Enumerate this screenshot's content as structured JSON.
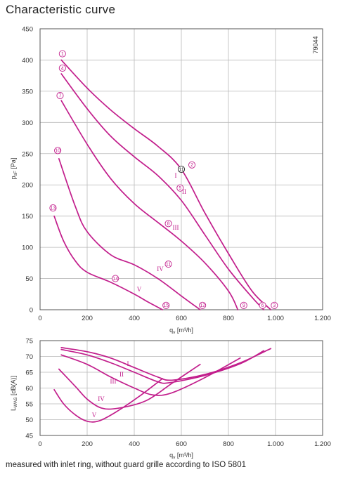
{
  "header": {
    "title": "Characteristic curve"
  },
  "footer": {
    "note": "measured with inlet ring, without guard grille according to ISO 5801"
  },
  "figure_code": "79044",
  "colors": {
    "curve": "#c21e8c",
    "grid": "#b9b9b9",
    "frame": "#555555"
  },
  "chart_data": [
    {
      "type": "line",
      "xlabel": "q_v [m³/h]",
      "ylabel": "p_sF [Pa]",
      "xlim": [
        0,
        1200
      ],
      "ylim": [
        0,
        450
      ],
      "xticks": [
        "0",
        "200",
        "400",
        "600",
        "800",
        "1.000",
        "1.200"
      ],
      "yticks": [
        "0",
        "50",
        "100",
        "150",
        "200",
        "250",
        "300",
        "350",
        "400",
        "450"
      ],
      "grid": true,
      "series": [
        {
          "name": "I",
          "points": [
            [
              90,
              400
            ],
            [
              200,
              355
            ],
            [
              300,
              320
            ],
            [
              400,
              290
            ],
            [
              500,
              262
            ],
            [
              600,
              225
            ],
            [
              700,
              155
            ],
            [
              800,
              90
            ],
            [
              900,
              30
            ],
            [
              980,
              0
            ]
          ]
        },
        {
          "name": "II",
          "points": [
            [
              90,
              378
            ],
            [
              200,
              322
            ],
            [
              300,
              278
            ],
            [
              400,
              245
            ],
            [
              500,
              215
            ],
            [
              600,
              175
            ],
            [
              700,
              120
            ],
            [
              800,
              65
            ],
            [
              900,
              20
            ],
            [
              950,
              0
            ]
          ]
        },
        {
          "name": "III",
          "points": [
            [
              90,
              335
            ],
            [
              200,
              265
            ],
            [
              300,
              210
            ],
            [
              400,
              170
            ],
            [
              500,
              140
            ],
            [
              600,
              110
            ],
            [
              700,
              75
            ],
            [
              800,
              30
            ],
            [
              840,
              0
            ]
          ]
        },
        {
          "name": "IV",
          "points": [
            [
              80,
              242
            ],
            [
              150,
              165
            ],
            [
              200,
              125
            ],
            [
              300,
              88
            ],
            [
              400,
              72
            ],
            [
              500,
              50
            ],
            [
              600,
              22
            ],
            [
              680,
              0
            ]
          ]
        },
        {
          "name": "V",
          "points": [
            [
              60,
              150
            ],
            [
              100,
              110
            ],
            [
              150,
              78
            ],
            [
              200,
              60
            ],
            [
              300,
              44
            ],
            [
              400,
              25
            ],
            [
              460,
              12
            ],
            [
              520,
              0
            ]
          ]
        }
      ],
      "roman_labels": [
        "I",
        "II",
        "III",
        "IV",
        "V"
      ],
      "markers": [
        {
          "id": "1",
          "x": 95,
          "y": 410
        },
        {
          "id": "4",
          "x": 95,
          "y": 387
        },
        {
          "id": "7",
          "x": 85,
          "y": 343
        },
        {
          "id": "10",
          "x": 75,
          "y": 255
        },
        {
          "id": "13",
          "x": 55,
          "y": 163
        },
        {
          "id": "2",
          "x": 645,
          "y": 232
        },
        {
          "id": "11",
          "x": 600,
          "y": 225
        },
        {
          "id": "5",
          "x": 595,
          "y": 195
        },
        {
          "id": "8",
          "x": 545,
          "y": 138
        },
        {
          "id": "11",
          "x": 545,
          "y": 73
        },
        {
          "id": "14",
          "x": 320,
          "y": 50
        },
        {
          "id": "15",
          "x": 535,
          "y": 7
        },
        {
          "id": "12",
          "x": 690,
          "y": 7
        },
        {
          "id": "9",
          "x": 865,
          "y": 7
        },
        {
          "id": "6",
          "x": 945,
          "y": 7
        },
        {
          "id": "3",
          "x": 995,
          "y": 7
        }
      ]
    },
    {
      "type": "line",
      "xlabel": "q_v [m³/h]",
      "ylabel": "L_WAS [dB(A)]",
      "xlim": [
        0,
        1200
      ],
      "ylim": [
        45,
        75
      ],
      "xticks": [
        "0",
        "200",
        "400",
        "600",
        "800",
        "1.000",
        "1.200"
      ],
      "yticks": [
        "45",
        "50",
        "55",
        "60",
        "65",
        "70",
        "75"
      ],
      "grid": true,
      "series": [
        {
          "name": "I",
          "points": [
            [
              90,
              72.8
            ],
            [
              200,
              71.5
            ],
            [
              300,
              69.5
            ],
            [
              400,
              66.5
            ],
            [
              500,
              63.5
            ],
            [
              560,
              62.5
            ],
            [
              700,
              64.3
            ],
            [
              850,
              68
            ],
            [
              980,
              72.5
            ]
          ]
        },
        {
          "name": "II",
          "points": [
            [
              90,
              72.2
            ],
            [
              200,
              70.5
            ],
            [
              300,
              68
            ],
            [
              400,
              65
            ],
            [
              500,
              62
            ],
            [
              550,
              61.7
            ],
            [
              700,
              64
            ],
            [
              850,
              67.7
            ],
            [
              950,
              71.8
            ]
          ]
        },
        {
          "name": "III",
          "points": [
            [
              90,
              70.5
            ],
            [
              200,
              67.5
            ],
            [
              300,
              63.5
            ],
            [
              400,
              60
            ],
            [
              480,
              57.8
            ],
            [
              560,
              58.5
            ],
            [
              700,
              63.3
            ],
            [
              850,
              69.5
            ]
          ]
        },
        {
          "name": "IV",
          "points": [
            [
              80,
              66
            ],
            [
              150,
              60.5
            ],
            [
              200,
              56.5
            ],
            [
              260,
              53.7
            ],
            [
              330,
              53.6
            ],
            [
              450,
              56
            ],
            [
              560,
              61.5
            ],
            [
              680,
              67.5
            ]
          ]
        },
        {
          "name": "V",
          "points": [
            [
              60,
              59.5
            ],
            [
              100,
              55
            ],
            [
              150,
              51.5
            ],
            [
              200,
              49.5
            ],
            [
              250,
              49.6
            ],
            [
              320,
              52.3
            ],
            [
              420,
              57.3
            ],
            [
              520,
              63
            ]
          ]
        }
      ],
      "roman_labels": [
        "I",
        "II",
        "III",
        "IV",
        "V"
      ]
    }
  ]
}
